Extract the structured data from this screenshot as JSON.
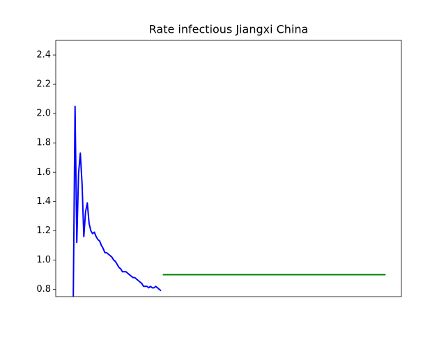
{
  "chart_data": {
    "type": "line",
    "title": "Rate infectious Jiangxi China",
    "xlim": [
      -10,
      187
    ],
    "ylim": [
      0.75,
      2.5
    ],
    "yticks": [
      0.8,
      {
        "value": 1,
        "label": "1.0"
      },
      1.2,
      1.4,
      1.6,
      1.8,
      {
        "value": 2,
        "label": "2.0"
      },
      2.2,
      2.4
    ],
    "series": [
      {
        "color": "#0000ff",
        "x": [
          0,
          1,
          2,
          3,
          4,
          5,
          6,
          7,
          8,
          9,
          10,
          11,
          12,
          13,
          14,
          15,
          16,
          17,
          18,
          19,
          20,
          21,
          22,
          23,
          24,
          25,
          26,
          27,
          28,
          29,
          30,
          31,
          32,
          33,
          34,
          35,
          36,
          37,
          38,
          39,
          40,
          41,
          42,
          43,
          44,
          45,
          46,
          47,
          48,
          49,
          50
        ],
        "values": [
          0.75,
          2.05,
          1.12,
          1.59,
          1.73,
          1.52,
          1.16,
          1.33,
          1.39,
          1.25,
          1.2,
          1.18,
          1.19,
          1.16,
          1.14,
          1.13,
          1.1,
          1.08,
          1.05,
          1.05,
          1.04,
          1.03,
          1.02,
          1.0,
          0.99,
          0.97,
          0.95,
          0.94,
          0.92,
          0.92,
          0.92,
          0.91,
          0.9,
          0.89,
          0.88,
          0.88,
          0.87,
          0.86,
          0.85,
          0.84,
          0.82,
          0.82,
          0.82,
          0.81,
          0.82,
          0.81,
          0.81,
          0.82,
          0.81,
          0.8,
          0.79
        ]
      },
      {
        "color": "#008000",
        "x": [
          51,
          178
        ],
        "values": [
          0.9,
          0.9
        ]
      }
    ]
  }
}
